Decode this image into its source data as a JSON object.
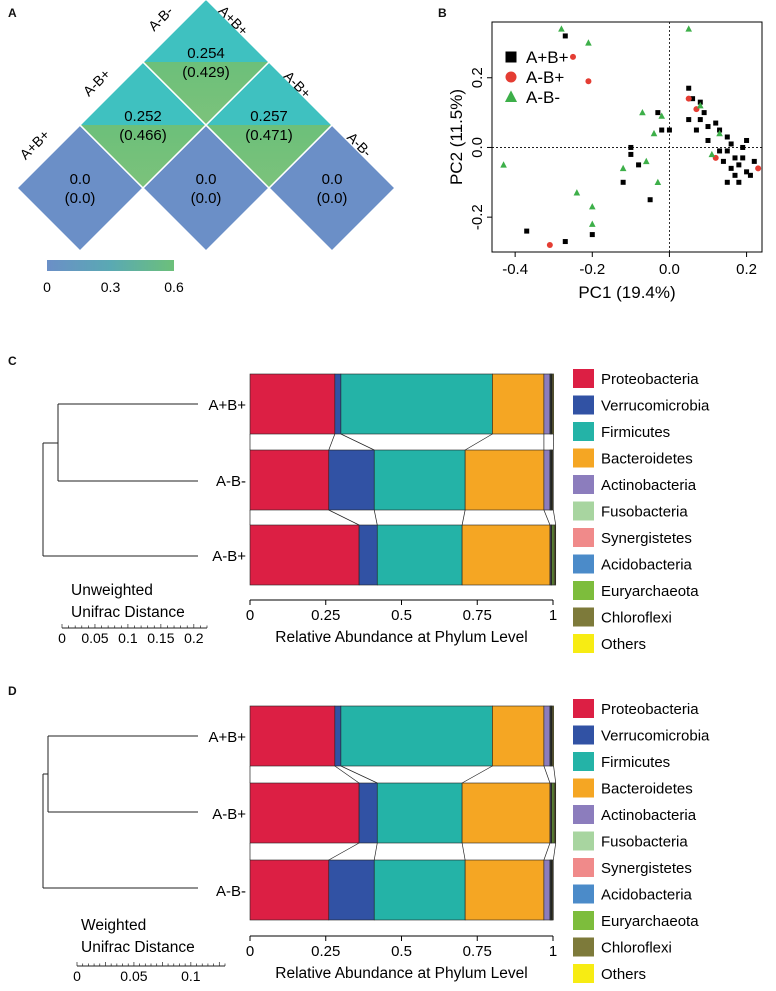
{
  "panel_labels": {
    "a": "A",
    "b": "B",
    "c": "C",
    "d": "D"
  },
  "chart_data": [
    {
      "panel": "A",
      "type": "heatmap",
      "groups": [
        "A+B+",
        "A-B+",
        "A-B-"
      ],
      "cells": [
        {
          "row": "A+B+",
          "col": "A+B+",
          "value": "0.0",
          "sub": "(0.0)"
        },
        {
          "row": "A-B+",
          "col": "A-B+",
          "value": "0.0",
          "sub": "(0.0)"
        },
        {
          "row": "A-B-",
          "col": "A-B-",
          "value": "0.0",
          "sub": "(0.0)"
        },
        {
          "row": "A+B+",
          "col": "A-B+",
          "value": "0.252",
          "sub": "(0.466)"
        },
        {
          "row": "A-B+",
          "col": "A-B-",
          "value": "0.257",
          "sub": "(0.471)"
        },
        {
          "row": "A+B+",
          "col": "A-B-",
          "value": "0.254",
          "sub": "(0.429)"
        }
      ],
      "colorbar": {
        "range": [
          0,
          0.6
        ],
        "ticks": [
          "0",
          "0.3",
          "0.6"
        ],
        "low_color": "#6b8fc7",
        "mid_color": "#3fc1c0",
        "high_color": "#6cc07a"
      }
    },
    {
      "panel": "B",
      "type": "scatter",
      "xlabel": "PC1 (19.4%)",
      "ylabel": "PC2 (11.5%)",
      "xlim": [
        -0.46,
        0.24
      ],
      "ylim": [
        -0.3,
        0.36
      ],
      "xticks": [
        -0.4,
        -0.2,
        0.0,
        0.2
      ],
      "xtick_labels": [
        "-0.4",
        "-0.2",
        "0.0",
        "0.2"
      ],
      "yticks": [
        -0.2,
        0.0,
        0.2
      ],
      "ytick_labels": [
        "-0.2",
        "0.0",
        "0.2"
      ],
      "series": [
        {
          "name": "A+B+",
          "marker": "square",
          "color": "#000000",
          "points": [
            [
              -0.27,
              0.32
            ],
            [
              -0.37,
              -0.24
            ],
            [
              -0.27,
              -0.27
            ],
            [
              -0.2,
              -0.25
            ],
            [
              -0.12,
              -0.1
            ],
            [
              -0.1,
              -0.02
            ],
            [
              -0.1,
              0.0
            ],
            [
              -0.05,
              -0.15
            ],
            [
              -0.08,
              -0.05
            ],
            [
              -0.03,
              0.1
            ],
            [
              -0.02,
              0.05
            ],
            [
              0.0,
              0.05
            ],
            [
              0.05,
              0.17
            ],
            [
              0.06,
              0.14
            ],
            [
              0.08,
              0.13
            ],
            [
              0.09,
              0.1
            ],
            [
              0.05,
              0.08
            ],
            [
              0.1,
              0.06
            ],
            [
              0.12,
              0.07
            ],
            [
              0.13,
              0.05
            ],
            [
              0.15,
              0.03
            ],
            [
              0.16,
              0.01
            ],
            [
              0.15,
              -0.01
            ],
            [
              0.17,
              -0.03
            ],
            [
              0.18,
              -0.05
            ],
            [
              0.19,
              -0.03
            ],
            [
              0.2,
              -0.07
            ],
            [
              0.14,
              -0.04
            ],
            [
              0.16,
              -0.06
            ],
            [
              0.18,
              -0.1
            ],
            [
              0.15,
              -0.1
            ],
            [
              0.21,
              -0.08
            ],
            [
              0.22,
              -0.04
            ],
            [
              0.19,
              0.0
            ],
            [
              0.2,
              0.02
            ],
            [
              0.17,
              -0.08
            ],
            [
              0.07,
              0.05
            ],
            [
              0.1,
              0.02
            ],
            [
              0.13,
              -0.01
            ],
            [
              0.08,
              0.08
            ]
          ]
        },
        {
          "name": "A-B+",
          "marker": "circle",
          "color": "#e43d33",
          "points": [
            [
              -0.31,
              -0.28
            ],
            [
              -0.25,
              0.26
            ],
            [
              -0.21,
              0.19
            ],
            [
              0.05,
              0.14
            ],
            [
              0.07,
              0.11
            ],
            [
              0.12,
              -0.03
            ],
            [
              0.23,
              -0.06
            ]
          ]
        },
        {
          "name": "A-B-",
          "marker": "triangle",
          "color": "#3daf49",
          "points": [
            [
              -0.28,
              0.34
            ],
            [
              -0.21,
              0.3
            ],
            [
              -0.43,
              -0.05
            ],
            [
              -0.24,
              -0.13
            ],
            [
              -0.2,
              -0.17
            ],
            [
              -0.2,
              -0.22
            ],
            [
              -0.03,
              -0.1
            ],
            [
              -0.06,
              -0.04
            ],
            [
              -0.04,
              0.04
            ],
            [
              -0.02,
              0.09
            ],
            [
              -0.12,
              -0.06
            ],
            [
              0.05,
              0.34
            ],
            [
              0.08,
              0.12
            ],
            [
              0.13,
              0.04
            ],
            [
              0.11,
              -0.02
            ],
            [
              -0.07,
              0.1
            ]
          ]
        }
      ]
    },
    {
      "panel": "C",
      "type": "bar",
      "orientation": "horizontal",
      "stacked": true,
      "categories": [
        "A+B+",
        "A-B-",
        "A-B+"
      ],
      "xlabel": "Relative Abundance at Phylum Level",
      "xlim": [
        0,
        1
      ],
      "xtick_labels": [
        "0",
        "0.25",
        "0.5",
        "0.75",
        "1"
      ],
      "series": [
        {
          "name": "Proteobacteria",
          "color": "#dc1f44",
          "values": [
            0.28,
            0.26,
            0.36
          ]
        },
        {
          "name": "Verrucomicrobia",
          "color": "#3152a4",
          "values": [
            0.02,
            0.15,
            0.06
          ]
        },
        {
          "name": "Firmicutes",
          "color": "#24b3a7",
          "values": [
            0.5,
            0.3,
            0.28
          ]
        },
        {
          "name": "Bacteroidetes",
          "color": "#f5a623",
          "values": [
            0.17,
            0.26,
            0.29
          ]
        },
        {
          "name": "Actinobacteria",
          "color": "#8c7dbd",
          "values": [
            0.02,
            0.02,
            0.003
          ]
        },
        {
          "name": "Fusobacteria",
          "color": "#a8d5a0",
          "values": [
            0.002,
            0.002,
            0.002
          ]
        },
        {
          "name": "Synergistetes",
          "color": "#f08a8a",
          "values": [
            0.001,
            0.001,
            0.001
          ]
        },
        {
          "name": "Acidobacteria",
          "color": "#4b8bc9",
          "values": [
            0.001,
            0.001,
            0.001
          ]
        },
        {
          "name": "Euryarchaeota",
          "color": "#7dbd3c",
          "values": [
            0.002,
            0.002,
            0.006
          ]
        },
        {
          "name": "Chloroflexi",
          "color": "#7d7a3a",
          "values": [
            0.004,
            0.003,
            0.004
          ]
        },
        {
          "name": "Others",
          "color": "#f7ec13",
          "values": [
            0.002,
            0.002,
            0.002
          ]
        }
      ],
      "dendrogram": {
        "label": "Unweighted Unifrac Distance",
        "scale_ticks": [
          "0",
          "0.05",
          "0.1",
          "0.15",
          "0.2"
        ]
      }
    },
    {
      "panel": "D",
      "type": "bar",
      "orientation": "horizontal",
      "stacked": true,
      "categories": [
        "A+B+",
        "A-B+",
        "A-B-"
      ],
      "xlabel": "Relative Abundance at Phylum Level",
      "xlim": [
        0,
        1
      ],
      "xtick_labels": [
        "0",
        "0.25",
        "0.5",
        "0.75",
        "1"
      ],
      "series": [
        {
          "name": "Proteobacteria",
          "color": "#dc1f44",
          "values": [
            0.28,
            0.36,
            0.26
          ]
        },
        {
          "name": "Verrucomicrobia",
          "color": "#3152a4",
          "values": [
            0.02,
            0.06,
            0.15
          ]
        },
        {
          "name": "Firmicutes",
          "color": "#24b3a7",
          "values": [
            0.5,
            0.28,
            0.3
          ]
        },
        {
          "name": "Bacteroidetes",
          "color": "#f5a623",
          "values": [
            0.17,
            0.29,
            0.26
          ]
        },
        {
          "name": "Actinobacteria",
          "color": "#8c7dbd",
          "values": [
            0.02,
            0.003,
            0.02
          ]
        },
        {
          "name": "Fusobacteria",
          "color": "#a8d5a0",
          "values": [
            0.002,
            0.002,
            0.002
          ]
        },
        {
          "name": "Synergistetes",
          "color": "#f08a8a",
          "values": [
            0.001,
            0.001,
            0.001
          ]
        },
        {
          "name": "Acidobacteria",
          "color": "#4b8bc9",
          "values": [
            0.001,
            0.001,
            0.001
          ]
        },
        {
          "name": "Euryarchaeota",
          "color": "#7dbd3c",
          "values": [
            0.002,
            0.006,
            0.002
          ]
        },
        {
          "name": "Chloroflexi",
          "color": "#7d7a3a",
          "values": [
            0.004,
            0.004,
            0.003
          ]
        },
        {
          "name": "Others",
          "color": "#f7ec13",
          "values": [
            0.002,
            0.002,
            0.002
          ]
        }
      ],
      "dendrogram": {
        "label": "Weighted Unifrac Distance",
        "scale_ticks": [
          "0",
          "0.05",
          "0.1"
        ]
      }
    }
  ]
}
